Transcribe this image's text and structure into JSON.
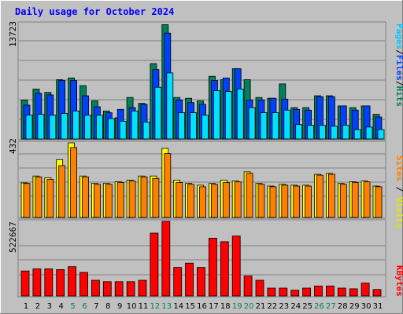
{
  "chart_data": [
    {
      "type": "bar",
      "title": "Daily usage for October 2024",
      "y_max_label": "13723",
      "ylim": [
        0,
        13723
      ],
      "side_label": [
        "Pages",
        "Files",
        "Hits"
      ],
      "grid": true,
      "categories": [
        "1",
        "2",
        "3",
        "4",
        "5",
        "6",
        "7",
        "8",
        "9",
        "10",
        "11",
        "12",
        "13",
        "14",
        "15",
        "16",
        "17",
        "18",
        "19",
        "20",
        "21",
        "22",
        "23",
        "24",
        "25",
        "26",
        "27",
        "28",
        "29",
        "30",
        "31"
      ],
      "weekend_days": [
        "5",
        "6",
        "12",
        "13",
        "19",
        "20",
        "26",
        "27"
      ],
      "series": [
        {
          "name": "Hits",
          "values": [
            4600,
            5900,
            5500,
            7000,
            7200,
            6300,
            4500,
            3300,
            2500,
            4900,
            4200,
            8900,
            13500,
            4900,
            4800,
            4500,
            7400,
            7000,
            8300,
            7000,
            4900,
            4800,
            6500,
            3700,
            3700,
            5100,
            5100,
            3900,
            3700,
            3900,
            2900
          ]
        },
        {
          "name": "Files",
          "values": [
            4000,
            5400,
            5200,
            6900,
            6900,
            5100,
            3800,
            3100,
            3500,
            3700,
            4100,
            8200,
            12500,
            4600,
            4300,
            4100,
            6900,
            7200,
            8300,
            4600,
            4600,
            4800,
            4700,
            3500,
            3400,
            5000,
            5000,
            3900,
            3400,
            3900,
            2600
          ]
        },
        {
          "name": "Pages",
          "values": [
            2800,
            2900,
            2800,
            3000,
            3300,
            2800,
            2800,
            2400,
            2100,
            3300,
            2000,
            6100,
            7800,
            3100,
            3100,
            2800,
            5700,
            5600,
            5900,
            3700,
            3100,
            3100,
            3400,
            1700,
            1600,
            1600,
            1500,
            1600,
            1100,
            1400,
            1100
          ]
        }
      ],
      "colors": {
        "Hits": "#00805c",
        "Files": "#0040ff",
        "Pages": "#00e0ff"
      }
    },
    {
      "type": "bar",
      "y_max_label": "432",
      "ylim": [
        0,
        432
      ],
      "side_label": [
        "Sites",
        "Visits"
      ],
      "grid": true,
      "series": [
        {
          "name": "Visits",
          "values": [
            200,
            240,
            230,
            335,
            432,
            240,
            197,
            197,
            207,
            216,
            240,
            240,
            400,
            216,
            197,
            187,
            197,
            216,
            211,
            264,
            197,
            182,
            192,
            187,
            187,
            250,
            255,
            197,
            207,
            211,
            182
          ]
        },
        {
          "name": "Sites",
          "values": [
            197,
            235,
            221,
            300,
            405,
            235,
            192,
            192,
            202,
            211,
            235,
            226,
            370,
            202,
            192,
            178,
            192,
            202,
            206,
            255,
            192,
            178,
            187,
            182,
            182,
            245,
            250,
            192,
            202,
            206,
            178
          ]
        }
      ],
      "colors": {
        "Visits": "#ffff00",
        "Sites": "#ff8000"
      }
    },
    {
      "type": "bar",
      "y_max_label": "522667",
      "ylim": [
        0,
        522667
      ],
      "side_label": [
        "KBytes"
      ],
      "grid": true,
      "series": [
        {
          "name": "KBytes",
          "values": [
            175000,
            190000,
            190000,
            185000,
            205000,
            165000,
            110000,
            100000,
            100000,
            100000,
            110000,
            440000,
            522667,
            200000,
            230000,
            200000,
            405000,
            380000,
            420000,
            140000,
            110000,
            55000,
            55000,
            40000,
            55000,
            70000,
            70000,
            55000,
            50000,
            90000,
            45000
          ]
        }
      ],
      "colors": {
        "KBytes": "#ff0000"
      }
    }
  ]
}
